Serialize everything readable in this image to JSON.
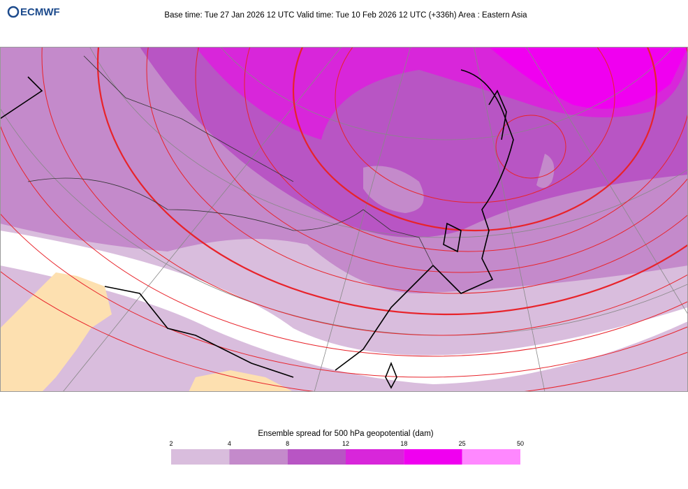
{
  "header": {
    "logo": "ECMWF",
    "title": "Base time: Tue 27 Jan 2026 12 UTC Valid time: Tue 10 Feb 2026 12 UTC (+336h) Area : Eastern Asia"
  },
  "legend": {
    "title": "Ensemble spread for 500 hPa geopotential (dam)",
    "bounds": [
      2,
      4,
      8,
      12,
      18,
      25,
      50
    ],
    "colors": [
      "#d9bddd",
      "#c48acb",
      "#b855c4",
      "#d826da",
      "#f000f0",
      "#ff88ff"
    ]
  }
}
